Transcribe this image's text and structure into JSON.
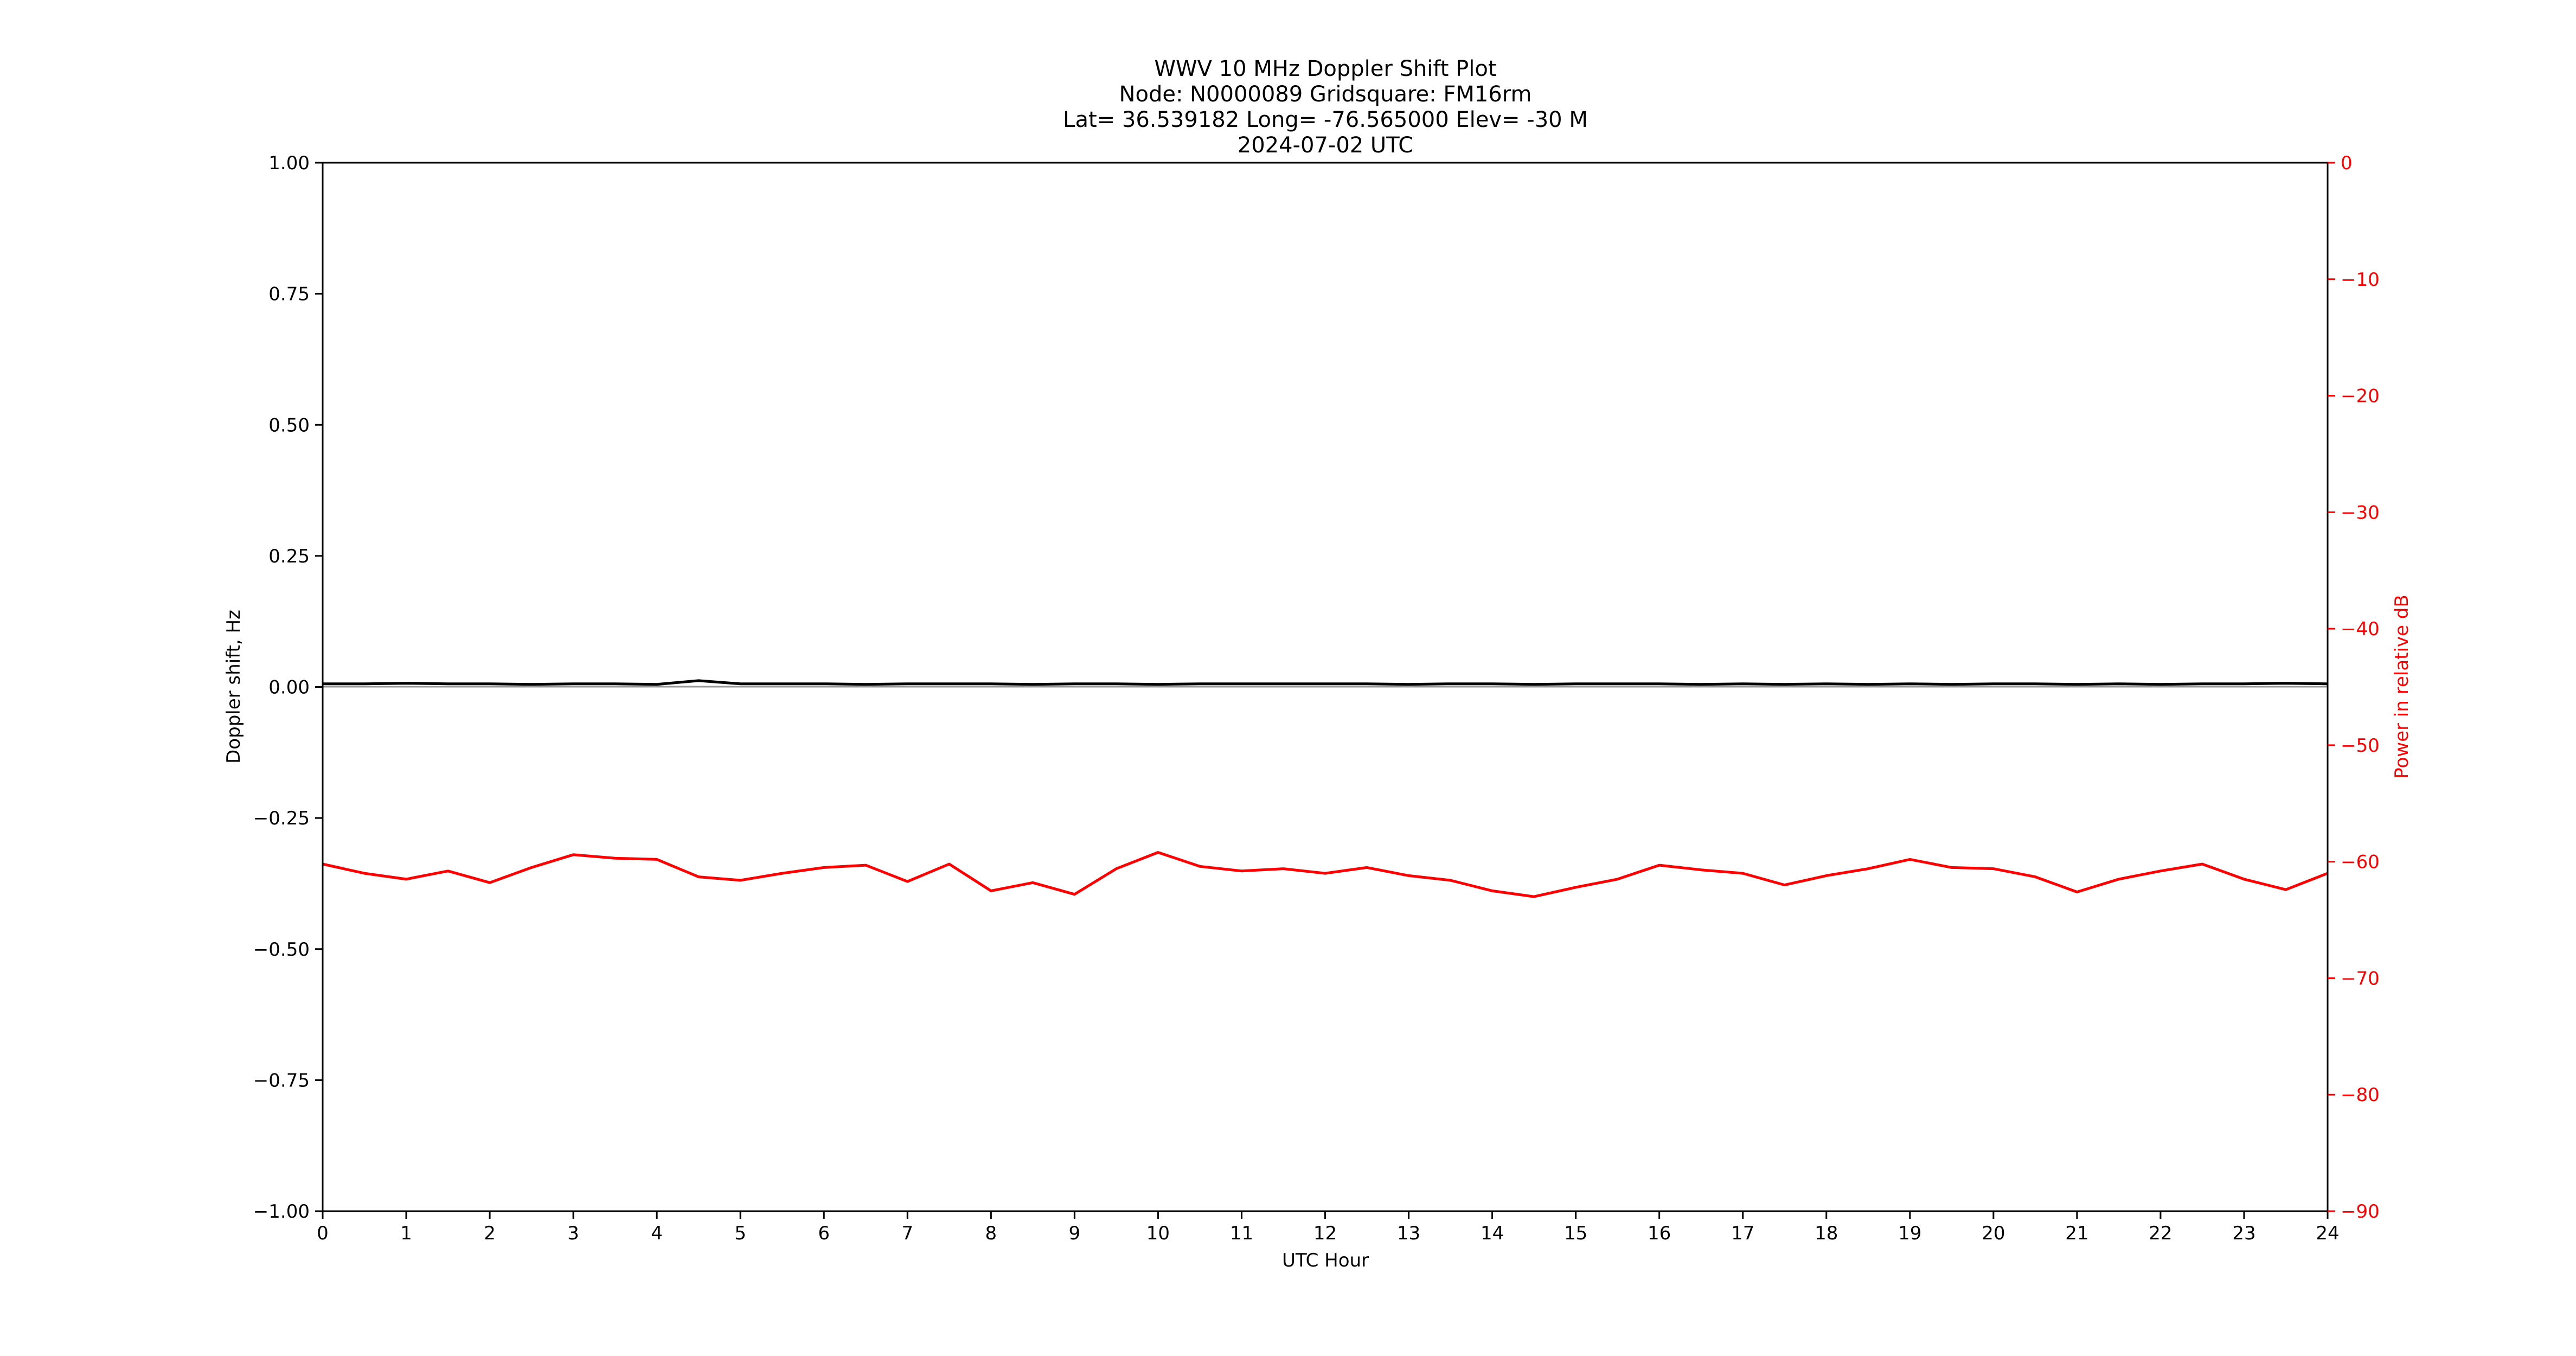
{
  "chart_data": {
    "type": "line",
    "title_lines": [
      "WWV 10 MHz Doppler Shift Plot",
      "Node:  N0000089     Gridsquare:  FM16rm",
      "Lat= 36.539182    Long= -76.565000    Elev= -30 M",
      "2024-07-02  UTC"
    ],
    "xlabel": "UTC Hour",
    "ylabel": "Doppler shift, Hz",
    "y2label": "Power in relative dB",
    "xlim": [
      0,
      24
    ],
    "ylim": [
      -1.0,
      1.0
    ],
    "y2lim": [
      -90,
      0
    ],
    "x_ticks": [
      "0",
      "1",
      "2",
      "3",
      "4",
      "5",
      "6",
      "7",
      "8",
      "9",
      "10",
      "11",
      "12",
      "13",
      "14",
      "15",
      "16",
      "17",
      "18",
      "19",
      "20",
      "21",
      "22",
      "23",
      "24"
    ],
    "y_ticks": [
      "1.00",
      "0.75",
      "0.50",
      "0.25",
      "0.00",
      "−0.25",
      "−0.50",
      "−0.75",
      "−1.00"
    ],
    "y2_ticks": [
      "0",
      "−10",
      "−20",
      "−30",
      "−40",
      "−50",
      "−60",
      "−70",
      "−80",
      "−90"
    ],
    "grid": false,
    "colors": {
      "doppler": "#000000",
      "power": "#ff0000",
      "axis2": "#ff0000",
      "zero_line": "#999999"
    },
    "series": [
      {
        "axis": "left",
        "x": [
          0,
          0.5,
          1,
          1.5,
          2,
          2.5,
          3,
          3.5,
          4,
          4.5,
          5,
          5.5,
          6,
          6.5,
          7,
          7.5,
          8,
          8.5,
          9,
          9.5,
          10,
          10.5,
          11,
          11.5,
          12,
          12.5,
          13,
          13.5,
          14,
          14.5,
          15,
          15.5,
          16,
          16.5,
          17,
          17.5,
          18,
          18.5,
          19,
          19.5,
          20,
          20.5,
          21,
          21.5,
          22,
          22.5,
          23,
          23.5,
          24
        ],
        "values": [
          0.006,
          0.006,
          0.007,
          0.006,
          0.006,
          0.005,
          0.006,
          0.006,
          0.005,
          0.012,
          0.006,
          0.006,
          0.006,
          0.005,
          0.006,
          0.006,
          0.006,
          0.005,
          0.006,
          0.006,
          0.005,
          0.006,
          0.006,
          0.006,
          0.006,
          0.006,
          0.005,
          0.006,
          0.006,
          0.005,
          0.006,
          0.006,
          0.006,
          0.005,
          0.006,
          0.005,
          0.006,
          0.005,
          0.006,
          0.005,
          0.006,
          0.006,
          0.005,
          0.006,
          0.005,
          0.006,
          0.006,
          0.007,
          0.006
        ]
      },
      {
        "axis": "right",
        "x": [
          0,
          0.5,
          1,
          1.5,
          2,
          2.5,
          3,
          3.5,
          4,
          4.5,
          5,
          5.5,
          6,
          6.5,
          7,
          7.5,
          8,
          8.5,
          9,
          9.5,
          10,
          10.5,
          11,
          11.5,
          12,
          12.5,
          13,
          13.5,
          14,
          14.5,
          15,
          15.5,
          16,
          16.5,
          17,
          17.5,
          18,
          18.5,
          19,
          19.5,
          20,
          20.5,
          21,
          21.5,
          22,
          22.5,
          23,
          23.5,
          24
        ],
        "values": [
          -60.2,
          -61.0,
          -61.5,
          -60.8,
          -61.8,
          -60.5,
          -59.4,
          -59.7,
          -59.8,
          -61.3,
          -61.6,
          -61.0,
          -60.5,
          -60.3,
          -61.7,
          -60.2,
          -62.5,
          -61.8,
          -62.8,
          -60.6,
          -59.2,
          -60.4,
          -60.8,
          -60.6,
          -61.0,
          -60.5,
          -61.2,
          -61.6,
          -62.5,
          -63.0,
          -62.2,
          -61.5,
          -60.3,
          -60.7,
          -61.0,
          -62.0,
          -61.2,
          -60.6,
          -59.8,
          -60.5,
          -60.6,
          -61.3,
          -62.6,
          -61.5,
          -60.8,
          -60.2,
          -61.5,
          -62.4,
          -61.0
        ]
      }
    ]
  }
}
